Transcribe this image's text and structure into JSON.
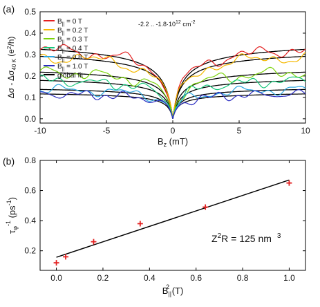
{
  "chart_data": [
    {
      "panel_label": "(a)",
      "type": "line",
      "xlabel": "B",
      "xlabel_sub": "z",
      "xlabel_unit": "(mT)",
      "ylabel": "Δσ - Δσ",
      "ylabel_sub": "40 K",
      "ylabel_unit": "(e",
      "ylabel_sup": "2",
      "ylabel_unit_end": "/h)",
      "xlim": [
        -10,
        10
      ],
      "ylim": [
        -0.02,
        0.5
      ],
      "xticks": [
        -10,
        -5,
        0,
        5,
        10
      ],
      "yticks": [
        0.0,
        0.1,
        0.2,
        0.3,
        0.4,
        0.5
      ],
      "grid": false,
      "legend_position": "top-left",
      "annotation": {
        "text": "-2.2 .. -1.8·10",
        "sup": "12",
        "unit": "cm",
        "unit_sup": "-2"
      },
      "series": [
        {
          "name": "B",
          "name_sub": "||",
          "name_rest": "= 0 T",
          "color": "#e32020",
          "saturation": 0.455,
          "field_scale": 1.0,
          "amp_near": 0.43,
          "noise": 0.018,
          "freq": 1.3
        },
        {
          "name": "B",
          "name_sub": "||",
          "name_rest": "= 0.2 T",
          "color": "#f5b800",
          "saturation": 0.405,
          "field_scale": 1.1,
          "amp_near": 0.36,
          "noise": 0.018,
          "freq": 1.1
        },
        {
          "name": "B",
          "name_sub": "||",
          "name_rest": "= 0.3 T",
          "color": "#7ad30a",
          "saturation": 0.3,
          "field_scale": 1.2,
          "amp_near": 0.26,
          "noise": 0.017,
          "freq": 1.5
        },
        {
          "name": "B",
          "name_sub": "||",
          "name_rest": "= 0.4 T",
          "color": "#16c67a",
          "saturation": 0.245,
          "field_scale": 1.3,
          "amp_near": 0.2,
          "noise": 0.015,
          "freq": 1.7
        },
        {
          "name": "B",
          "name_sub": "||",
          "name_rest": "= 0.8 T",
          "color": "#2aa6e0",
          "saturation": 0.185,
          "field_scale": 1.5,
          "amp_near": 0.16,
          "noise": 0.014,
          "freq": 1.4
        },
        {
          "name": "B",
          "name_sub": "||",
          "name_rest": "= 1.0 T",
          "color": "#2a2cc0",
          "saturation": 0.155,
          "field_scale": 1.7,
          "amp_near": 0.13,
          "noise": 0.013,
          "freq": 1.9
        },
        {
          "name": "global fit",
          "color": "#000000",
          "is_fit": true
        }
      ]
    },
    {
      "panel_label": "(b)",
      "type": "scatter",
      "xlabel": "B",
      "xlabel_sub": "||",
      "xlabel_sup": "2",
      "xlabel_unit": "(T)",
      "ylabel": "τ",
      "ylabel_sub": "φ",
      "ylabel_sup": "-1",
      "ylabel_unit": "(ps",
      "ylabel_unit_sup": "-1",
      "ylabel_unit_end": ")",
      "xlim": [
        -0.07,
        1.07
      ],
      "ylim": [
        0.07,
        0.8
      ],
      "xticks": [
        0.0,
        0.2,
        0.4,
        0.6,
        0.8,
        1.0
      ],
      "yticks": [
        0.2,
        0.4,
        0.6,
        0.8
      ],
      "grid": false,
      "points": [
        {
          "x": 0.0,
          "y": 0.12
        },
        {
          "x": 0.04,
          "y": 0.16
        },
        {
          "x": 0.16,
          "y": 0.26
        },
        {
          "x": 0.36,
          "y": 0.38
        },
        {
          "x": 0.64,
          "y": 0.49
        },
        {
          "x": 1.0,
          "y": 0.65
        }
      ],
      "fit_line": {
        "x": [
          0.0,
          1.0
        ],
        "y": [
          0.157,
          0.67
        ]
      },
      "point_color": "#e32020",
      "annotation": {
        "text": "Z",
        "sup": "2",
        "rest": "R = 125 nm",
        "rest_sup": "3"
      }
    }
  ]
}
